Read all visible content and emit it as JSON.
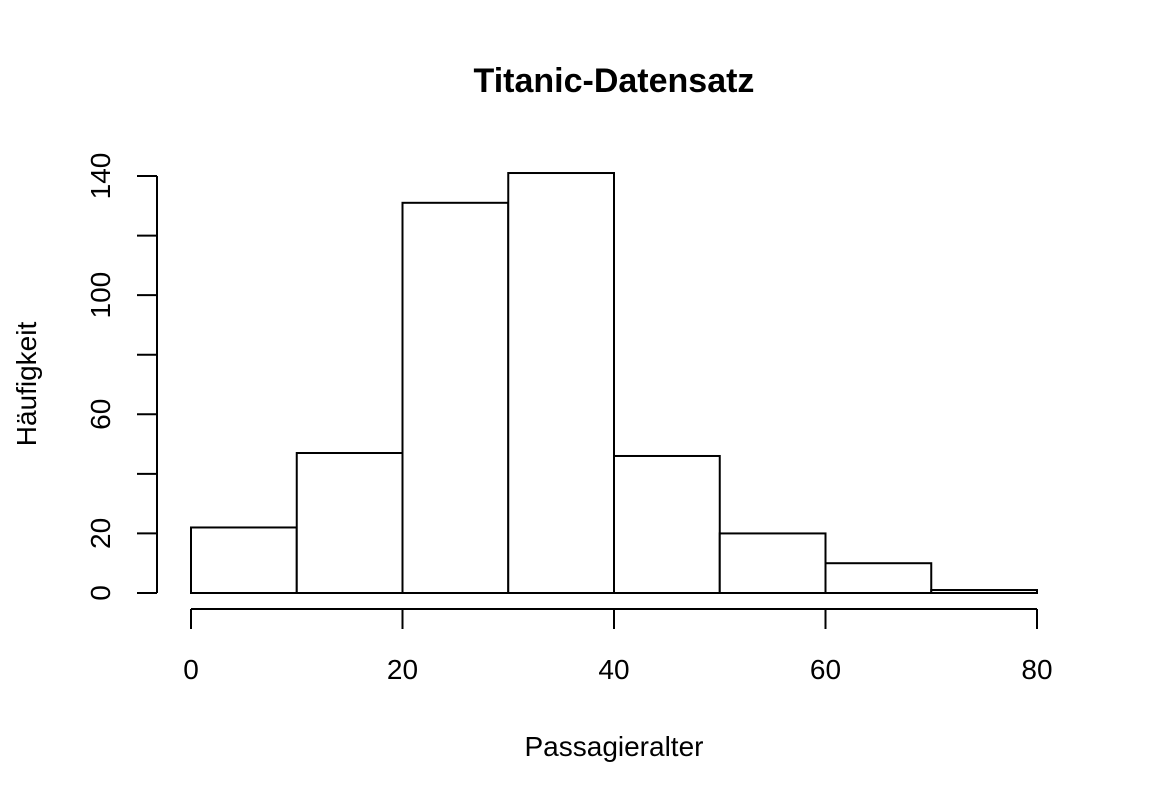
{
  "chart_data": {
    "type": "bar",
    "title": "Titanic-Datensatz",
    "xlabel": "Passagieralter",
    "ylabel": "Häufigkeit",
    "bins": [
      {
        "from": 0,
        "to": 10,
        "value": 22
      },
      {
        "from": 10,
        "to": 20,
        "value": 47
      },
      {
        "from": 20,
        "to": 30,
        "value": 131
      },
      {
        "from": 30,
        "to": 40,
        "value": 141
      },
      {
        "from": 40,
        "to": 50,
        "value": 46
      },
      {
        "from": 50,
        "to": 60,
        "value": 20
      },
      {
        "from": 60,
        "to": 70,
        "value": 10
      },
      {
        "from": 70,
        "to": 80,
        "value": 1
      }
    ],
    "xlim": [
      0,
      80
    ],
    "ylim": [
      0,
      140
    ],
    "xticks": [
      0,
      20,
      40,
      60,
      80
    ],
    "yticks_labeled": [
      0,
      20,
      60,
      100,
      140
    ],
    "yticks_all": [
      0,
      20,
      40,
      60,
      80,
      100,
      120,
      140
    ],
    "grid": false,
    "colors": {
      "bar_fill": "#ffffff",
      "bar_stroke": "#000000"
    }
  }
}
